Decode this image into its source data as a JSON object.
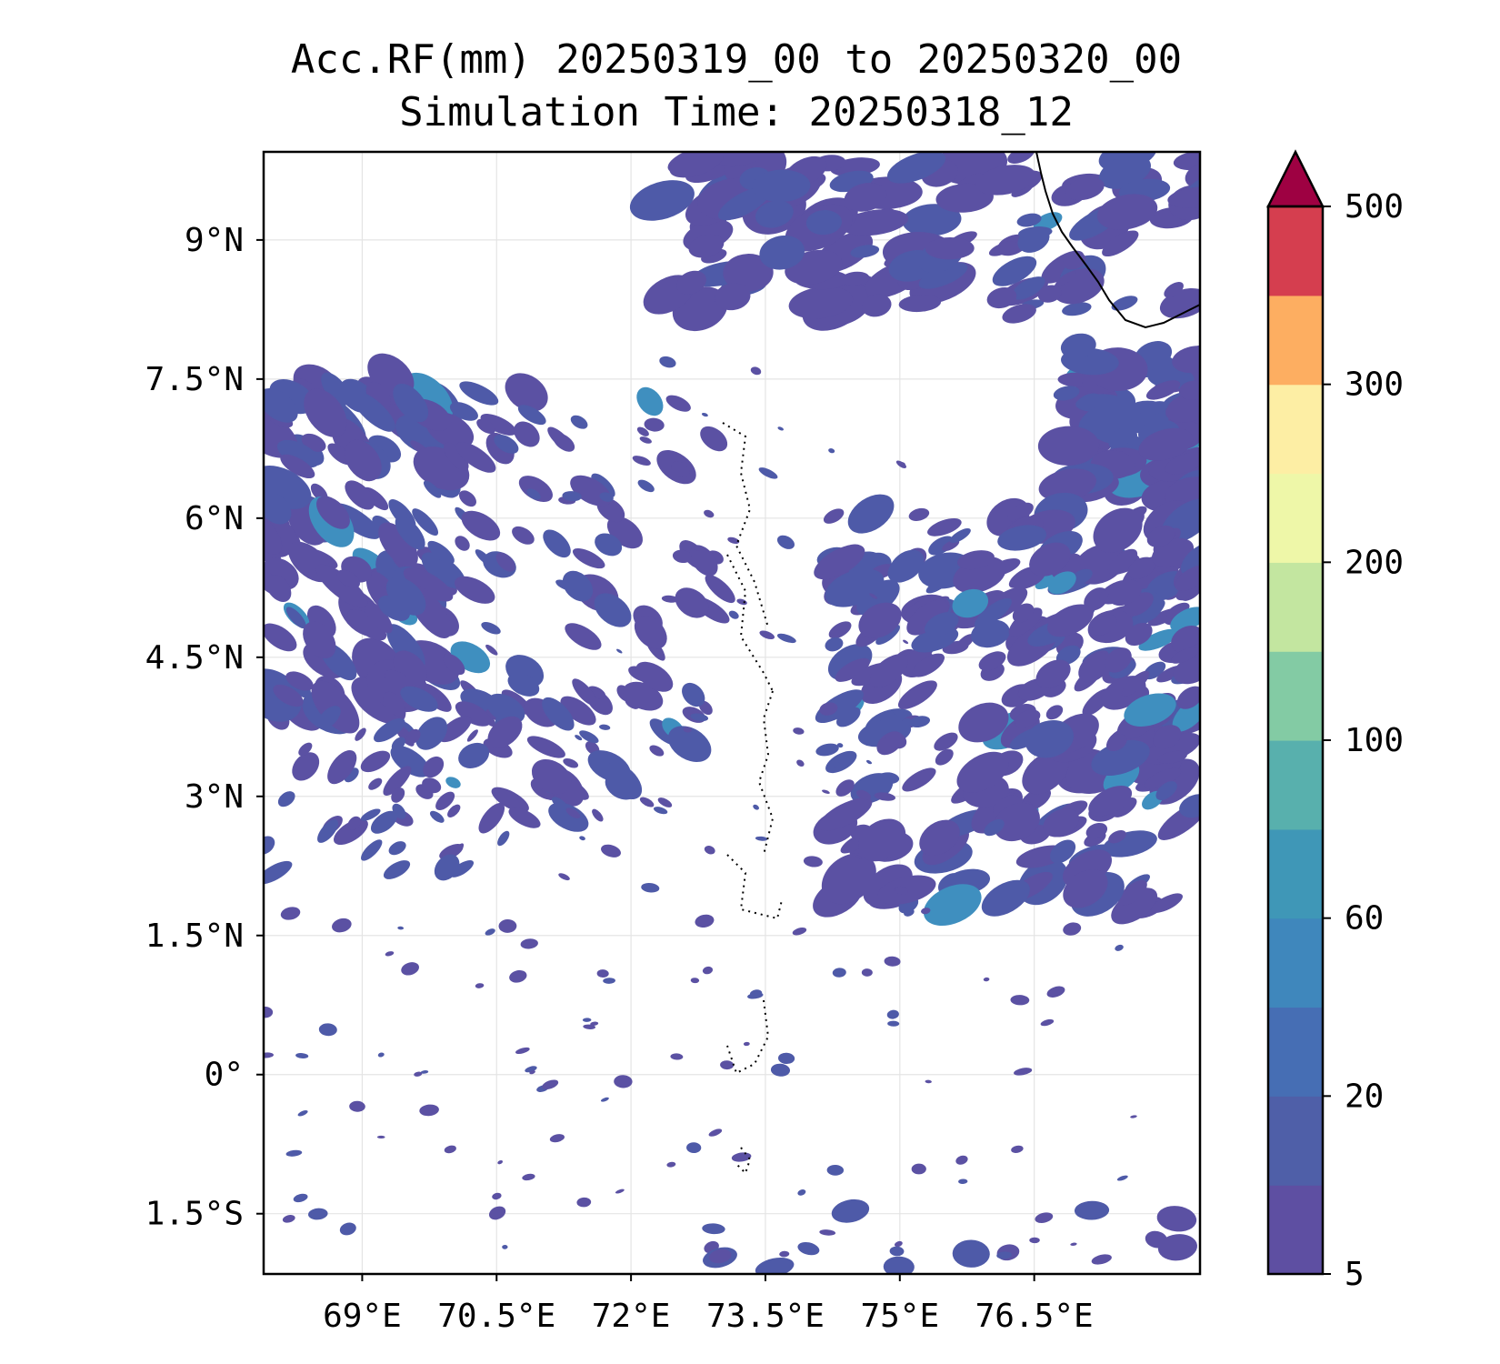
{
  "title": {
    "line1": "Acc.RF(mm) 20250319_00 to 20250320_00",
    "line2": "Simulation Time: 20250318_12"
  },
  "map": {
    "lon_range": [
      67.9,
      78.35
    ],
    "lat_range": [
      -2.15,
      9.95
    ],
    "lon_ticks": [
      {
        "value": 69,
        "label": "69°E"
      },
      {
        "value": 70.5,
        "label": "70.5°E"
      },
      {
        "value": 72,
        "label": "72°E"
      },
      {
        "value": 73.5,
        "label": "73.5°E"
      },
      {
        "value": 75,
        "label": "75°E"
      },
      {
        "value": 76.5,
        "label": "76.5°E"
      }
    ],
    "lat_ticks": [
      {
        "value": 9,
        "label": "9°N"
      },
      {
        "value": 7.5,
        "label": "7.5°N"
      },
      {
        "value": 6,
        "label": "6°N"
      },
      {
        "value": 4.5,
        "label": "4.5°N"
      },
      {
        "value": 3,
        "label": "3°N"
      },
      {
        "value": 1.5,
        "label": "1.5°N"
      },
      {
        "value": 0,
        "label": "0°"
      },
      {
        "value": -1.5,
        "label": "1.5°S"
      }
    ],
    "gridlines": true,
    "rain_color": "#5b51a3",
    "rain_color_dark": "#4e5aa8",
    "rain_color_peak": "#3f8fbf",
    "coastline_color": "#000000"
  },
  "colorbar": {
    "levels": [
      5,
      10,
      20,
      40,
      60,
      80,
      100,
      150,
      200,
      250,
      300,
      400,
      500
    ],
    "tick_labels": [
      {
        "value": 5,
        "label": "5"
      },
      {
        "value": 20,
        "label": "20"
      },
      {
        "value": 60,
        "label": "60"
      },
      {
        "value": 100,
        "label": "100"
      },
      {
        "value": 200,
        "label": "200"
      },
      {
        "value": 300,
        "label": "300"
      },
      {
        "value": 500,
        "label": "500"
      }
    ],
    "colors": [
      "#5e4fa2",
      "#4f5fa8",
      "#466eb4",
      "#3f87bc",
      "#3f97b7",
      "#58b0ad",
      "#83cba4",
      "#c3e6a0",
      "#eef7a8",
      "#fdeea4",
      "#fdae61",
      "#d53e4f"
    ],
    "extend_color": "#9e0142"
  }
}
